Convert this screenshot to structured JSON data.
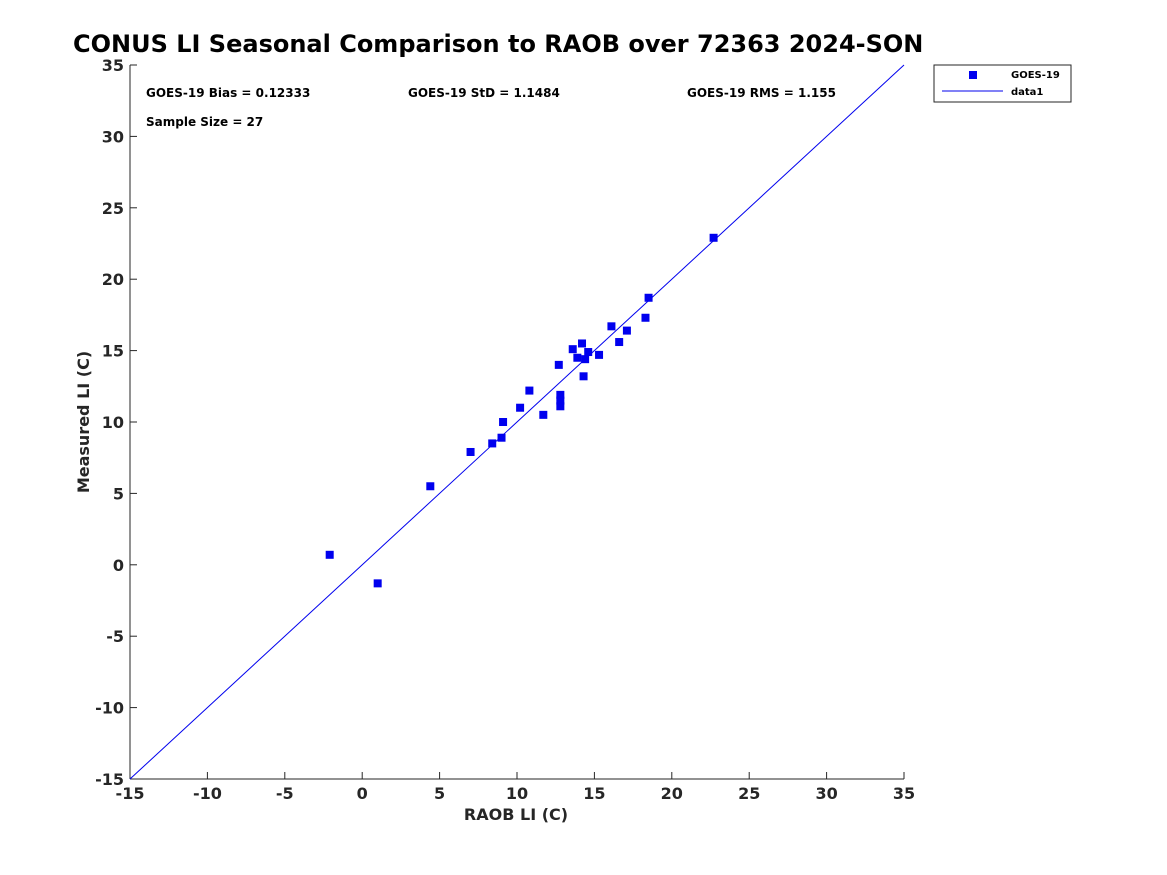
{
  "chart_data": {
    "type": "scatter",
    "title": "CONUS LI Seasonal Comparison to RAOB over 72363 2024-SON",
    "xlabel": "RAOB LI (C)",
    "ylabel": "Measured LI (C)",
    "xlim": [
      -15,
      35
    ],
    "ylim": [
      -15,
      35
    ],
    "xticks": [
      "-15",
      "-10",
      "-5",
      "0",
      "5",
      "10",
      "15",
      "20",
      "25",
      "30",
      "35"
    ],
    "yticks": [
      "35",
      "30",
      "25",
      "20",
      "15",
      "10",
      "5",
      "0",
      "-5",
      "-10",
      "-15"
    ],
    "grid": false,
    "legend_position": "outside-top-right",
    "colors": {
      "series": "#0000ee",
      "axis": "#262626"
    },
    "stats": {
      "bias": "GOES-19 Bias = 0.12333",
      "std": "GOES-19 StD = 1.1484",
      "rms": "GOES-19 RMS = 1.155",
      "sample": "Sample Size = 27"
    },
    "series": [
      {
        "name": "GOES-19",
        "marker": "square",
        "points": [
          [
            -2.1,
            0.7
          ],
          [
            1.0,
            -1.3
          ],
          [
            4.4,
            5.5
          ],
          [
            7.0,
            7.9
          ],
          [
            8.4,
            8.5
          ],
          [
            9.0,
            8.9
          ],
          [
            9.1,
            10.0
          ],
          [
            10.2,
            11.0
          ],
          [
            10.8,
            12.2
          ],
          [
            11.7,
            10.5
          ],
          [
            12.7,
            14.0
          ],
          [
            12.8,
            11.9
          ],
          [
            12.8,
            11.5
          ],
          [
            12.8,
            11.1
          ],
          [
            13.6,
            15.1
          ],
          [
            13.9,
            14.5
          ],
          [
            14.2,
            15.5
          ],
          [
            14.3,
            13.2
          ],
          [
            14.4,
            14.4
          ],
          [
            14.6,
            14.9
          ],
          [
            15.3,
            14.7
          ],
          [
            16.1,
            16.7
          ],
          [
            16.6,
            15.6
          ],
          [
            17.1,
            16.4
          ],
          [
            18.3,
            17.3
          ],
          [
            18.5,
            18.7
          ],
          [
            22.7,
            22.9
          ]
        ]
      },
      {
        "name": "data1",
        "type": "line",
        "points": [
          [
            -15,
            -15
          ],
          [
            35,
            35
          ]
        ]
      }
    ]
  }
}
